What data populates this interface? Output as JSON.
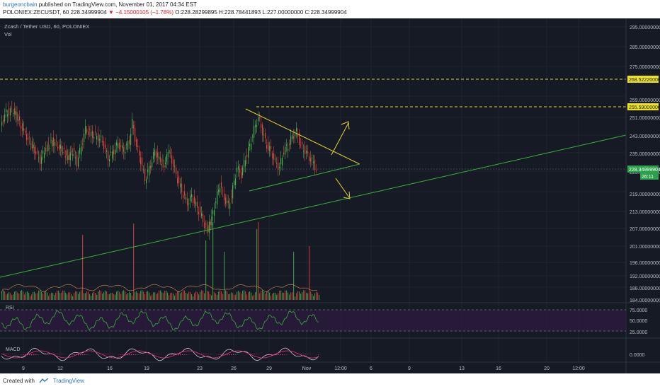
{
  "header": {
    "author": "burgeoncbain",
    "published": " published on TradingView.com, November 01, 2017 04:34 EST",
    "symbol_label": "POLONIEX:ZECUSDT, 60 ",
    "last_price": "228.34999904",
    "change": "▼ −4.15000105 (−1.78%)",
    "ohlc": " O:228.28299895 H:228.78441893 L:227.00000000 C:228.34999904"
  },
  "legend": {
    "title": "Zcash / Tether USD, 60, POLONIEX",
    "volume": "Vol"
  },
  "price_axis": {
    "ticks": [
      "295.00000000",
      "285.00000000",
      "275.00000000",
      "259.00000000",
      "251.00000000",
      "243.00000000",
      "235.00000000",
      "225.00000000",
      "219.00000000",
      "213.00000000",
      "207.00000000",
      "201.00000000",
      "196.00000000",
      "192.00000000",
      "188.00000000",
      "184.00000000"
    ],
    "tags": [
      {
        "label": "268.52220000",
        "kind": "yellow"
      },
      {
        "label": "255.59000000",
        "kind": "yellow"
      },
      {
        "label": "228.34999904",
        "kind": "green"
      },
      {
        "label": "26:11",
        "kind": "green"
      }
    ]
  },
  "rsi": {
    "label": "RSI",
    "ticks": [
      "75.0000",
      "50.0000",
      "25.0000"
    ]
  },
  "macd": {
    "label": "MACD",
    "ticks": [
      "0.0000"
    ]
  },
  "time_axis": {
    "ticks": [
      "9",
      "12",
      "16",
      "19",
      "23",
      "26",
      "29",
      "Nov",
      "12:00",
      "6",
      "9",
      "13",
      "16",
      "20",
      "12:00"
    ]
  },
  "footer": {
    "created_with": "Created with",
    "brand": "TradingView"
  },
  "colors": {
    "background": "#161a25",
    "up": "#4caf50",
    "down": "#e0453b",
    "yellow": "#e3d02b",
    "trend_green": "#3ab03a",
    "rsi_line": "#33b233",
    "macd_main": "#e0e0e0",
    "macd_signal": "#e8308a"
  },
  "price_series": {
    "points": [
      {
        "x": 2,
        "p": 247
      },
      {
        "x": 10,
        "p": 252
      },
      {
        "x": 20,
        "p": 253
      },
      {
        "x": 27,
        "p": 249
      },
      {
        "x": 35,
        "p": 244
      },
      {
        "x": 43,
        "p": 240
      },
      {
        "x": 50,
        "p": 236
      },
      {
        "x": 58,
        "p": 232
      },
      {
        "x": 66,
        "p": 237
      },
      {
        "x": 75,
        "p": 240
      },
      {
        "x": 83,
        "p": 238
      },
      {
        "x": 90,
        "p": 236
      },
      {
        "x": 97,
        "p": 233
      },
      {
        "x": 104,
        "p": 236
      },
      {
        "x": 110,
        "p": 231
      },
      {
        "x": 116,
        "p": 238
      },
      {
        "x": 122,
        "p": 245
      },
      {
        "x": 130,
        "p": 243
      },
      {
        "x": 138,
        "p": 242
      },
      {
        "x": 146,
        "p": 240
      },
      {
        "x": 154,
        "p": 233
      },
      {
        "x": 160,
        "p": 235
      },
      {
        "x": 168,
        "p": 239
      },
      {
        "x": 176,
        "p": 236
      },
      {
        "x": 184,
        "p": 240
      },
      {
        "x": 188,
        "p": 248
      },
      {
        "x": 194,
        "p": 238
      },
      {
        "x": 200,
        "p": 232
      },
      {
        "x": 206,
        "p": 224
      },
      {
        "x": 214,
        "p": 230
      },
      {
        "x": 220,
        "p": 236
      },
      {
        "x": 226,
        "p": 232
      },
      {
        "x": 233,
        "p": 230
      },
      {
        "x": 240,
        "p": 236
      },
      {
        "x": 246,
        "p": 230
      },
      {
        "x": 252,
        "p": 224
      },
      {
        "x": 258,
        "p": 219
      },
      {
        "x": 266,
        "p": 214
      },
      {
        "x": 272,
        "p": 217
      },
      {
        "x": 278,
        "p": 213
      },
      {
        "x": 284,
        "p": 210
      },
      {
        "x": 290,
        "p": 205
      },
      {
        "x": 295,
        "p": 203
      },
      {
        "x": 300,
        "p": 208
      },
      {
        "x": 306,
        "p": 215
      },
      {
        "x": 312,
        "p": 222
      },
      {
        "x": 318,
        "p": 216
      },
      {
        "x": 324,
        "p": 213
      },
      {
        "x": 330,
        "p": 220
      },
      {
        "x": 336,
        "p": 229
      },
      {
        "x": 342,
        "p": 226
      },
      {
        "x": 348,
        "p": 233
      },
      {
        "x": 354,
        "p": 238
      },
      {
        "x": 360,
        "p": 245
      },
      {
        "x": 366,
        "p": 250
      },
      {
        "x": 372,
        "p": 244
      },
      {
        "x": 378,
        "p": 238
      },
      {
        "x": 384,
        "p": 236
      },
      {
        "x": 390,
        "p": 231
      },
      {
        "x": 396,
        "p": 229
      },
      {
        "x": 402,
        "p": 236
      },
      {
        "x": 408,
        "p": 238
      },
      {
        "x": 414,
        "p": 242
      },
      {
        "x": 420,
        "p": 244
      },
      {
        "x": 426,
        "p": 238
      },
      {
        "x": 432,
        "p": 236
      },
      {
        "x": 438,
        "p": 233
      },
      {
        "x": 444,
        "p": 231
      },
      {
        "x": 448,
        "p": 228
      }
    ]
  }
}
